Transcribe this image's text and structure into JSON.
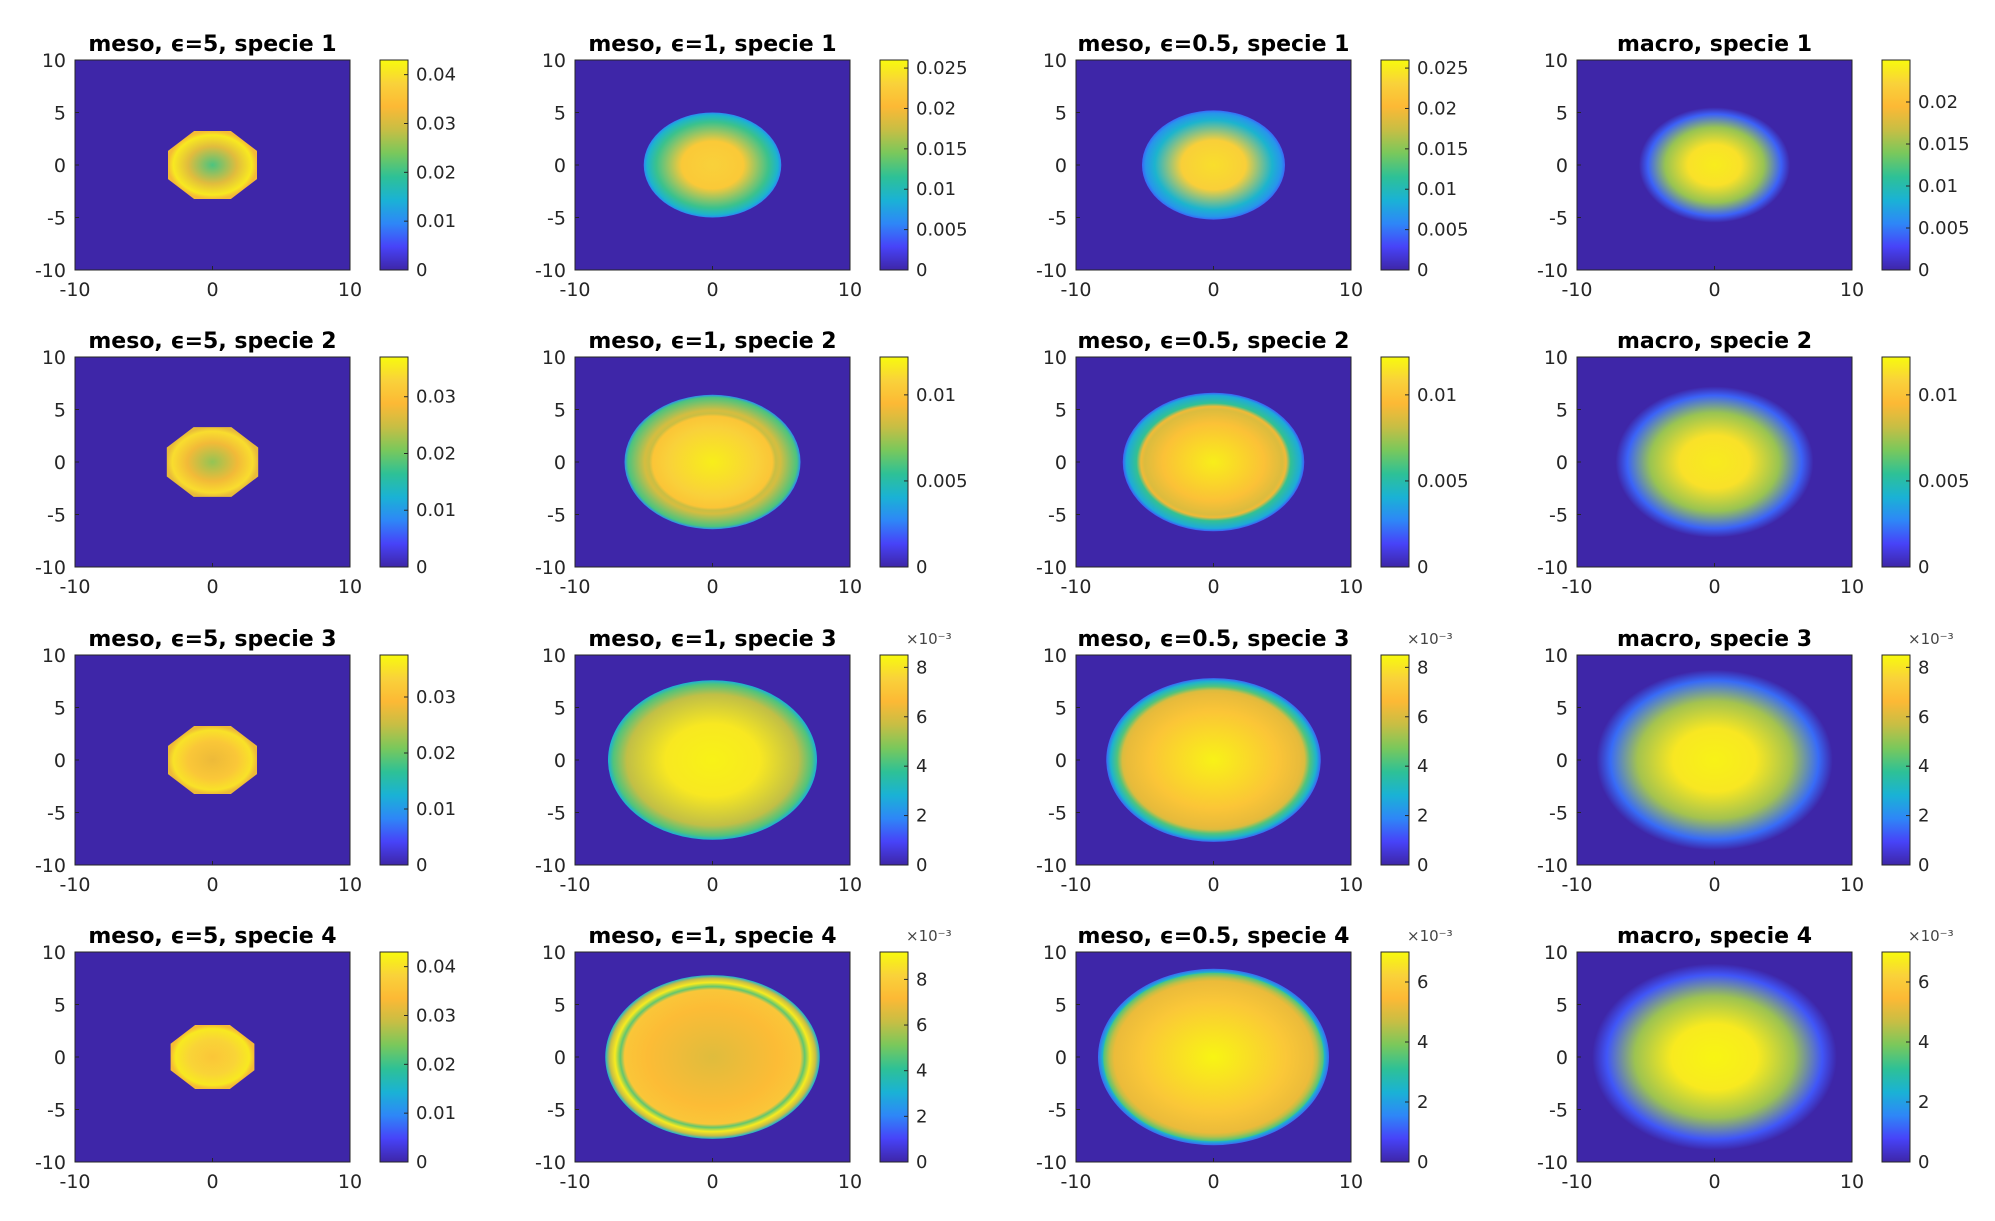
{
  "colormap": [
    "#3e26a8",
    "#4743f8",
    "#2e87f7",
    "#1ab2d5",
    "#2ec196",
    "#79c85c",
    "#c7be44",
    "#fcb935",
    "#f9d23a",
    "#f8fa0d"
  ],
  "chart_data": [
    {
      "type": "heatmap",
      "title": "meso, ϵ=5, specie 1",
      "xlim": [
        -10,
        10
      ],
      "ylim": [
        -10,
        10
      ],
      "xticks": [
        "-10",
        "0",
        "10"
      ],
      "yticks": [
        "10",
        "5",
        "0",
        "-5",
        "-10"
      ],
      "colorbar": {
        "min": 0,
        "max": 0.043,
        "ticks": [
          {
            "v": 0,
            "label": "0"
          },
          {
            "v": 0.01,
            "label": "0.01"
          },
          {
            "v": 0.02,
            "label": "0.02"
          },
          {
            "v": 0.03,
            "label": "0.03"
          },
          {
            "v": 0.04,
            "label": "0.04"
          }
        ],
        "exponent": ""
      },
      "field": {
        "shape": "octagon",
        "radius": 3.5,
        "center_value": 0.021,
        "edge_value": 0.041,
        "ring_value": 0,
        "ring_pos": 0
      }
    },
    {
      "type": "heatmap",
      "title": "meso, ϵ=1, specie 1",
      "xlim": [
        -10,
        10
      ],
      "ylim": [
        -10,
        10
      ],
      "xticks": [
        "-10",
        "0",
        "10"
      ],
      "yticks": [
        "10",
        "5",
        "0",
        "-5",
        "-10"
      ],
      "colorbar": {
        "min": 0,
        "max": 0.026,
        "ticks": [
          {
            "v": 0,
            "label": "0"
          },
          {
            "v": 0.005,
            "label": "0.005"
          },
          {
            "v": 0.01,
            "label": "0.01"
          },
          {
            "v": 0.015,
            "label": "0.015"
          },
          {
            "v": 0.02,
            "label": "0.02"
          },
          {
            "v": 0.025,
            "label": "0.025"
          }
        ],
        "exponent": ""
      },
      "field": {
        "shape": "ellipse",
        "radius": 5.0,
        "center_value": 0.023,
        "edge_value": 0.012,
        "ring_value": 0,
        "ring_pos": 0
      }
    },
    {
      "type": "heatmap",
      "title": "meso, ϵ=0.5, specie 1",
      "xlim": [
        -10,
        10
      ],
      "ylim": [
        -10,
        10
      ],
      "xticks": [
        "-10",
        "0",
        "10"
      ],
      "yticks": [
        "10",
        "5",
        "0",
        "-5",
        "-10"
      ],
      "colorbar": {
        "min": 0,
        "max": 0.026,
        "ticks": [
          {
            "v": 0,
            "label": "0"
          },
          {
            "v": 0.005,
            "label": "0.005"
          },
          {
            "v": 0.01,
            "label": "0.01"
          },
          {
            "v": 0.015,
            "label": "0.015"
          },
          {
            "v": 0.02,
            "label": "0.02"
          },
          {
            "v": 0.025,
            "label": "0.025"
          }
        ],
        "exponent": ""
      },
      "field": {
        "shape": "ellipse",
        "radius": 5.2,
        "center_value": 0.024,
        "edge_value": 0.009,
        "ring_value": 0,
        "ring_pos": 0
      }
    },
    {
      "type": "heatmap",
      "title": "macro, specie 1",
      "xlim": [
        -10,
        10
      ],
      "ylim": [
        -10,
        10
      ],
      "xticks": [
        "-10",
        "0",
        "10"
      ],
      "yticks": [
        "10",
        "5",
        "0",
        "-5",
        "-10"
      ],
      "colorbar": {
        "min": 0,
        "max": 0.025,
        "ticks": [
          {
            "v": 0,
            "label": "0"
          },
          {
            "v": 0.005,
            "label": "0.005"
          },
          {
            "v": 0.01,
            "label": "0.01"
          },
          {
            "v": 0.015,
            "label": "0.015"
          },
          {
            "v": 0.02,
            "label": "0.02"
          }
        ],
        "exponent": ""
      },
      "field": {
        "shape": "gauss",
        "radius": 5.5,
        "center_value": 0.024,
        "edge_value": 0.004,
        "ring_value": 0,
        "ring_pos": 0
      }
    },
    {
      "type": "heatmap",
      "title": "meso, ϵ=5, specie 2",
      "xlim": [
        -10,
        10
      ],
      "ylim": [
        -10,
        10
      ],
      "xticks": [
        "-10",
        "0",
        "10"
      ],
      "yticks": [
        "10",
        "5",
        "0",
        "-5",
        "-10"
      ],
      "colorbar": {
        "min": 0,
        "max": 0.037,
        "ticks": [
          {
            "v": 0,
            "label": "0"
          },
          {
            "v": 0.01,
            "label": "0.01"
          },
          {
            "v": 0.02,
            "label": "0.02"
          },
          {
            "v": 0.03,
            "label": "0.03"
          }
        ],
        "exponent": ""
      },
      "field": {
        "shape": "octagon",
        "radius": 3.6,
        "center_value": 0.022,
        "edge_value": 0.034,
        "ring_value": 0,
        "ring_pos": 0
      }
    },
    {
      "type": "heatmap",
      "title": "meso, ϵ=1, specie 2",
      "xlim": [
        -10,
        10
      ],
      "ylim": [
        -10,
        10
      ],
      "xticks": [
        "-10",
        "0",
        "10"
      ],
      "yticks": [
        "10",
        "5",
        "0",
        "-5",
        "-10"
      ],
      "colorbar": {
        "min": 0,
        "max": 0.0122,
        "ticks": [
          {
            "v": 0,
            "label": "0"
          },
          {
            "v": 0.005,
            "label": "0.005"
          },
          {
            "v": 0.01,
            "label": "0.01"
          }
        ],
        "exponent": ""
      },
      "field": {
        "shape": "ellipse",
        "radius": 6.4,
        "center_value": 0.0118,
        "edge_value": 0.0085,
        "ring_value": 0.0082,
        "ring_pos": 0.72
      }
    },
    {
      "type": "heatmap",
      "title": "meso, ϵ=0.5, specie 2",
      "xlim": [
        -10,
        10
      ],
      "ylim": [
        -10,
        10
      ],
      "xticks": [
        "-10",
        "0",
        "10"
      ],
      "yticks": [
        "10",
        "5",
        "0",
        "-5",
        "-10"
      ],
      "colorbar": {
        "min": 0,
        "max": 0.0122,
        "ticks": [
          {
            "v": 0,
            "label": "0"
          },
          {
            "v": 0.005,
            "label": "0.005"
          },
          {
            "v": 0.01,
            "label": "0.01"
          }
        ],
        "exponent": ""
      },
      "field": {
        "shape": "ellipse",
        "radius": 6.6,
        "center_value": 0.0118,
        "edge_value": 0.0055,
        "ring_value": 0.0092,
        "ring_pos": 0.8
      }
    },
    {
      "type": "heatmap",
      "title": "macro, specie 2",
      "xlim": [
        -10,
        10
      ],
      "ylim": [
        -10,
        10
      ],
      "xticks": [
        "-10",
        "0",
        "10"
      ],
      "yticks": [
        "10",
        "5",
        "0",
        "-5",
        "-10"
      ],
      "colorbar": {
        "min": 0,
        "max": 0.0122,
        "ticks": [
          {
            "v": 0,
            "label": "0"
          },
          {
            "v": 0.005,
            "label": "0.005"
          },
          {
            "v": 0.01,
            "label": "0.01"
          }
        ],
        "exponent": ""
      },
      "field": {
        "shape": "gauss",
        "radius": 7.2,
        "center_value": 0.0117,
        "edge_value": 0.002,
        "ring_value": 0,
        "ring_pos": 0
      }
    },
    {
      "type": "heatmap",
      "title": "meso, ϵ=5, specie 3",
      "xlim": [
        -10,
        10
      ],
      "ylim": [
        -10,
        10
      ],
      "xticks": [
        "-10",
        "0",
        "10"
      ],
      "yticks": [
        "10",
        "5",
        "0",
        "-5",
        "-10"
      ],
      "colorbar": {
        "min": 0,
        "max": 0.0375,
        "ticks": [
          {
            "v": 0,
            "label": "0"
          },
          {
            "v": 0.01,
            "label": "0.01"
          },
          {
            "v": 0.02,
            "label": "0.02"
          },
          {
            "v": 0.03,
            "label": "0.03"
          }
        ],
        "exponent": ""
      },
      "field": {
        "shape": "octagon",
        "radius": 3.5,
        "center_value": 0.028,
        "edge_value": 0.035,
        "ring_value": 0,
        "ring_pos": 0
      }
    },
    {
      "type": "heatmap",
      "title": "meso, ϵ=1, specie 3",
      "xlim": [
        -10,
        10
      ],
      "ylim": [
        -10,
        10
      ],
      "xticks": [
        "-10",
        "0",
        "10"
      ],
      "yticks": [
        "10",
        "5",
        "0",
        "-5",
        "-10"
      ],
      "colorbar": {
        "min": 0,
        "max": 8.5,
        "ticks": [
          {
            "v": 0,
            "label": "0"
          },
          {
            "v": 2,
            "label": "2"
          },
          {
            "v": 4,
            "label": "4"
          },
          {
            "v": 6,
            "label": "6"
          },
          {
            "v": 8,
            "label": "8"
          }
        ],
        "exponent": "×10⁻³"
      },
      "field": {
        "shape": "ellipse",
        "radius": 7.6,
        "center_value": 8.3,
        "edge_value": 5.6,
        "ring_value": 0,
        "ring_pos": 0
      }
    },
    {
      "type": "heatmap",
      "title": "meso, ϵ=0.5, specie 3",
      "xlim": [
        -10,
        10
      ],
      "ylim": [
        -10,
        10
      ],
      "xticks": [
        "-10",
        "0",
        "10"
      ],
      "yticks": [
        "10",
        "5",
        "0",
        "-5",
        "-10"
      ],
      "colorbar": {
        "min": 0,
        "max": 8.5,
        "ticks": [
          {
            "v": 0,
            "label": "0"
          },
          {
            "v": 2,
            "label": "2"
          },
          {
            "v": 4,
            "label": "4"
          },
          {
            "v": 6,
            "label": "6"
          },
          {
            "v": 8,
            "label": "8"
          }
        ],
        "exponent": "×10⁻³"
      },
      "field": {
        "shape": "ellipse",
        "radius": 7.8,
        "center_value": 8.3,
        "edge_value": 4.2,
        "ring_value": 6.0,
        "ring_pos": 0.85
      }
    },
    {
      "type": "heatmap",
      "title": "macro, specie 3",
      "xlim": [
        -10,
        10
      ],
      "ylim": [
        -10,
        10
      ],
      "xticks": [
        "-10",
        "0",
        "10"
      ],
      "yticks": [
        "10",
        "5",
        "0",
        "-5",
        "-10"
      ],
      "colorbar": {
        "min": 0,
        "max": 8.5,
        "ticks": [
          {
            "v": 0,
            "label": "0"
          },
          {
            "v": 2,
            "label": "2"
          },
          {
            "v": 4,
            "label": "4"
          },
          {
            "v": 6,
            "label": "6"
          },
          {
            "v": 8,
            "label": "8"
          }
        ],
        "exponent": "×10⁻³"
      },
      "field": {
        "shape": "gauss",
        "radius": 8.6,
        "center_value": 8.3,
        "edge_value": 1.5,
        "ring_value": 0,
        "ring_pos": 0
      }
    },
    {
      "type": "heatmap",
      "title": "meso, ϵ=5, specie 4",
      "xlim": [
        -10,
        10
      ],
      "ylim": [
        -10,
        10
      ],
      "xticks": [
        "-10",
        "0",
        "10"
      ],
      "yticks": [
        "10",
        "5",
        "0",
        "-5",
        "-10"
      ],
      "colorbar": {
        "min": 0,
        "max": 0.043,
        "ticks": [
          {
            "v": 0,
            "label": "0"
          },
          {
            "v": 0.01,
            "label": "0.01"
          },
          {
            "v": 0.02,
            "label": "0.02"
          },
          {
            "v": 0.03,
            "label": "0.03"
          },
          {
            "v": 0.04,
            "label": "0.04"
          }
        ],
        "exponent": ""
      },
      "field": {
        "shape": "octagon",
        "radius": 3.3,
        "center_value": 0.036,
        "edge_value": 0.041,
        "ring_value": 0,
        "ring_pos": 0
      }
    },
    {
      "type": "heatmap",
      "title": "meso, ϵ=1, specie 4",
      "xlim": [
        -10,
        10
      ],
      "ylim": [
        -10,
        10
      ],
      "xticks": [
        "-10",
        "0",
        "10"
      ],
      "yticks": [
        "10",
        "5",
        "0",
        "-5",
        "-10"
      ],
      "colorbar": {
        "min": 0,
        "max": 9.2,
        "ticks": [
          {
            "v": 0,
            "label": "0"
          },
          {
            "v": 2,
            "label": "2"
          },
          {
            "v": 4,
            "label": "4"
          },
          {
            "v": 6,
            "label": "6"
          },
          {
            "v": 8,
            "label": "8"
          }
        ],
        "exponent": "×10⁻³"
      },
      "field": {
        "shape": "ellipse",
        "radius": 7.8,
        "center_value": 6.6,
        "edge_value": 8.8,
        "ring_value": 4.8,
        "ring_pos": 0.86
      }
    },
    {
      "type": "heatmap",
      "title": "meso, ϵ=0.5, specie 4",
      "xlim": [
        -10,
        10
      ],
      "ylim": [
        -10,
        10
      ],
      "xticks": [
        "-10",
        "0",
        "10"
      ],
      "yticks": [
        "10",
        "5",
        "0",
        "-5",
        "-10"
      ],
      "colorbar": {
        "min": 0,
        "max": 7.0,
        "ticks": [
          {
            "v": 0,
            "label": "0"
          },
          {
            "v": 2,
            "label": "2"
          },
          {
            "v": 4,
            "label": "4"
          },
          {
            "v": 6,
            "label": "6"
          }
        ],
        "exponent": "×10⁻³"
      },
      "field": {
        "shape": "ellipse",
        "radius": 8.4,
        "center_value": 6.9,
        "edge_value": 3.5,
        "ring_value": 4.6,
        "ring_pos": 0.9
      }
    },
    {
      "type": "heatmap",
      "title": "macro, specie 4",
      "xlim": [
        -10,
        10
      ],
      "ylim": [
        -10,
        10
      ],
      "xticks": [
        "-10",
        "0",
        "10"
      ],
      "yticks": [
        "10",
        "5",
        "0",
        "-5",
        "-10"
      ],
      "colorbar": {
        "min": 0,
        "max": 7.0,
        "ticks": [
          {
            "v": 0,
            "label": "0"
          },
          {
            "v": 2,
            "label": "2"
          },
          {
            "v": 4,
            "label": "4"
          },
          {
            "v": 6,
            "label": "6"
          }
        ],
        "exponent": "×10⁻³"
      },
      "field": {
        "shape": "gauss",
        "radius": 8.9,
        "center_value": 6.9,
        "edge_value": 1.0,
        "ring_value": 0,
        "ring_pos": 0
      }
    }
  ]
}
